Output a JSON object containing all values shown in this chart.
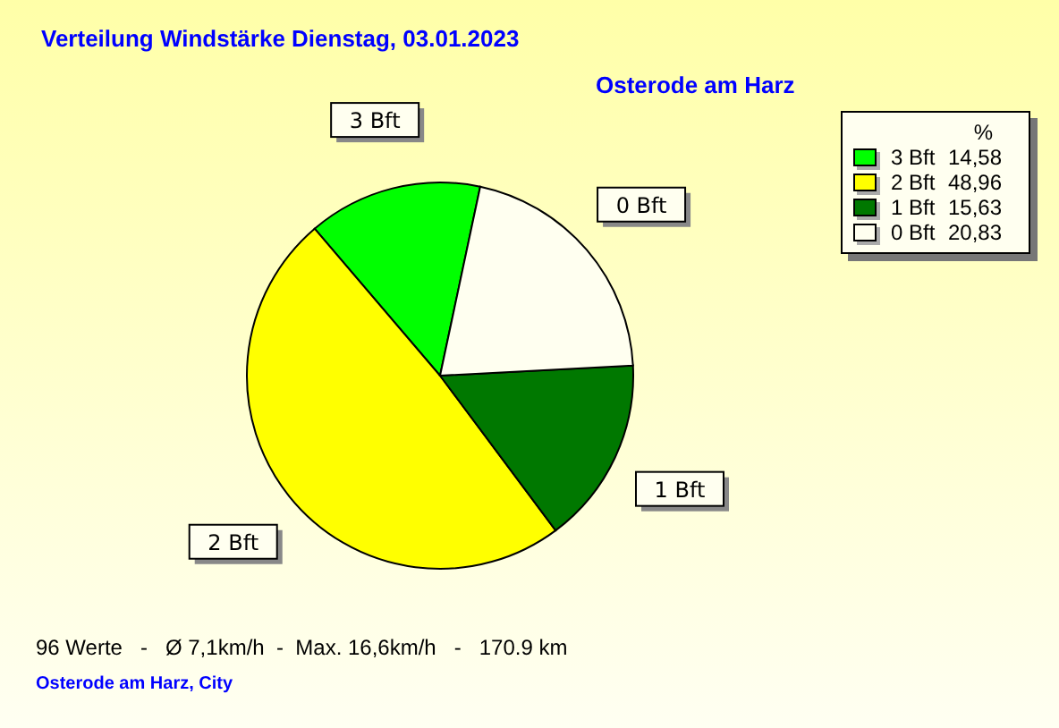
{
  "chart_data": {
    "type": "pie",
    "title": "Verteilung Windstärke  Dienstag, 03.01.2023",
    "subtitle": "Osterode am Harz",
    "categories": [
      "3 Bft",
      "2 Bft",
      "1 Bft",
      "0 Bft"
    ],
    "values": [
      14.58,
      48.96,
      15.63,
      20.83
    ],
    "value_labels": [
      "14,58",
      "48,96",
      "15,63",
      "20,83"
    ],
    "colors": [
      "#00ff00",
      "#ffff00",
      "#007800",
      "#fffff0"
    ],
    "legend": "top right",
    "legend_title": "%",
    "annotations": [
      "96 Werte   -   Ø 7,1km/h  -  Max. 16,6km/h   -   170.9 km",
      "Osterode am Harz, City"
    ]
  }
}
